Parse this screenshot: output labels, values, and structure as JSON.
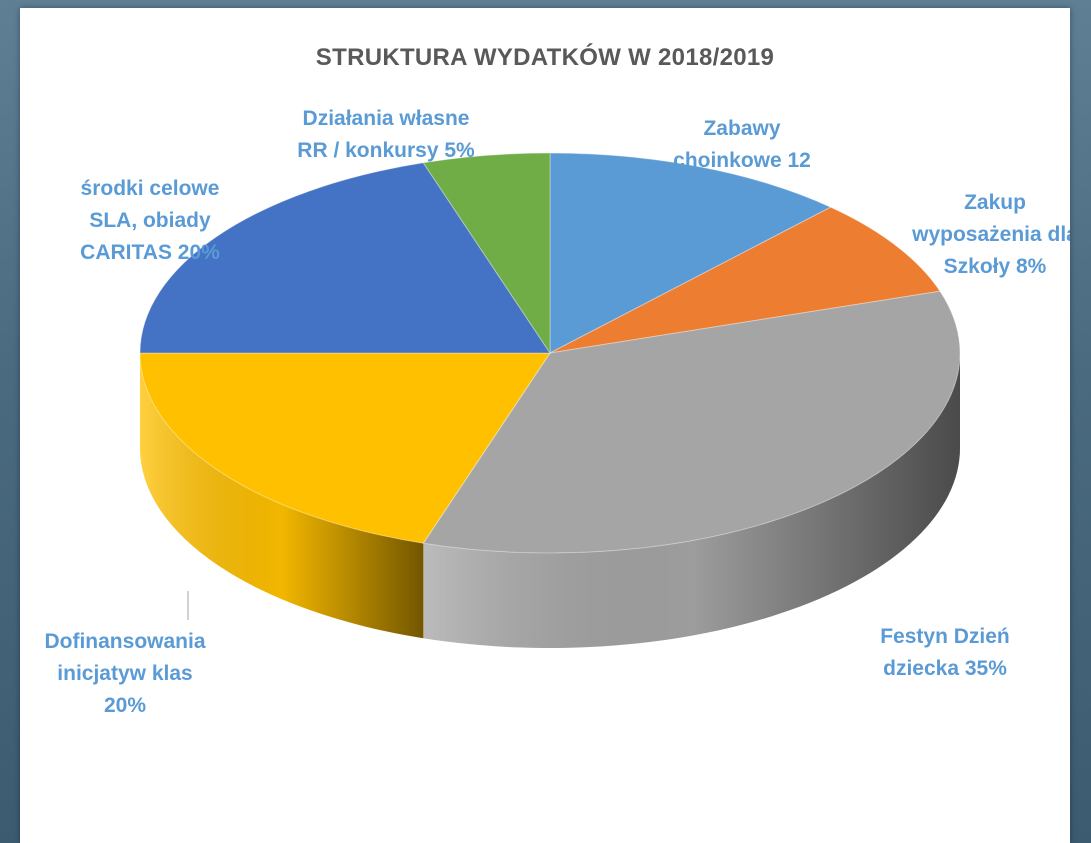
{
  "chart_data": {
    "type": "pie",
    "title": "STRUKTURA WYDATKÓW  W 2018/2019",
    "slices": [
      {
        "label_lines": [
          "Zabawy",
          "choinkowe 12"
        ],
        "value": 12,
        "color": "#5b9bd5"
      },
      {
        "label_lines": [
          "Zakup",
          "wyposażenia dla",
          "Szkoły 8%"
        ],
        "value": 8,
        "color": "#ed7d31"
      },
      {
        "label_lines": [
          "Festyn Dzień",
          "dziecka 35%"
        ],
        "value": 35,
        "color": "#a5a5a5"
      },
      {
        "label_lines": [
          "Dofinansowania",
          "inicjatyw klas",
          "20%"
        ],
        "value": 20,
        "color": "#ffc000"
      },
      {
        "label_lines": [
          "środki celowe",
          "SLA, obiady",
          "CARITAS 20%"
        ],
        "value": 20,
        "color": "#4472c4"
      },
      {
        "label_lines": [
          "Działania własne",
          "RR / konkursy 5%"
        ],
        "value": 5,
        "color": "#70ad47"
      }
    ],
    "legend": "none",
    "style": "3d"
  }
}
